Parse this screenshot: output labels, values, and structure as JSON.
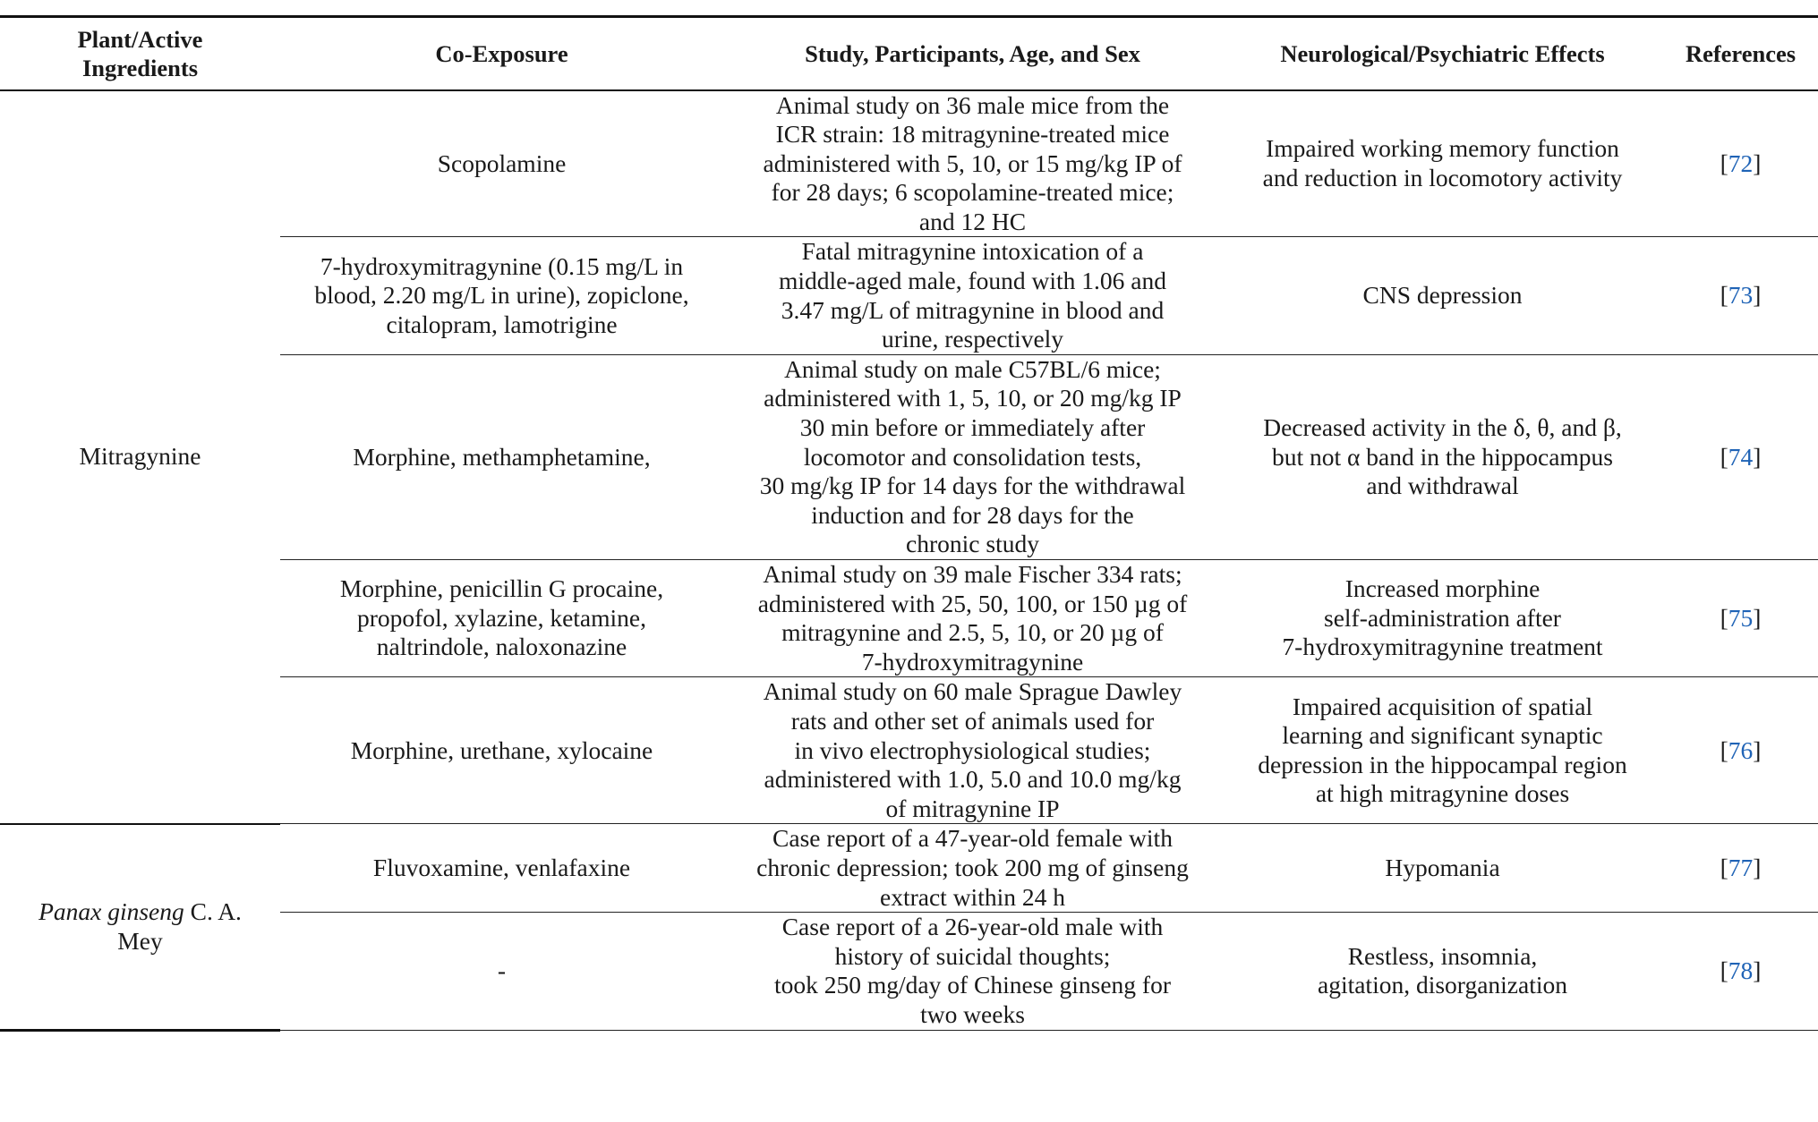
{
  "headers": {
    "plant": [
      "Plant/Active",
      "Ingredients"
    ],
    "coexposure": "Co-Exposure",
    "study": "Study, Participants, Age, and Sex",
    "effects": "Neurological/Psychiatric Effects",
    "references": "References"
  },
  "groups": [
    {
      "plant_lines": [
        "Mitragynine"
      ],
      "rows": [
        {
          "coexposure": [
            "Scopolamine"
          ],
          "study": [
            "Animal study on 36 male mice from the",
            "ICR strain: 18 mitragynine-treated mice",
            "administered with 5, 10, or 15 mg/kg IP of",
            "for 28 days; 6 scopolamine-treated mice;",
            "and 12 HC"
          ],
          "effects": [
            "Impaired working memory function",
            "and reduction in locomotory activity"
          ],
          "ref": "72"
        },
        {
          "coexposure": [
            "7-hydroxymitragynine (0.15 mg/L in",
            "blood, 2.20 mg/L in urine), zopiclone,",
            "citalopram, lamotrigine"
          ],
          "study": [
            "Fatal mitragynine intoxication of a",
            "middle-aged male, found with 1.06 and",
            "3.47 mg/L of mitragynine in blood and",
            "urine, respectively"
          ],
          "effects": [
            "CNS depression"
          ],
          "ref": "73"
        },
        {
          "coexposure": [
            "Morphine, methamphetamine,"
          ],
          "study": [
            "Animal study on male C57BL/6 mice;",
            "administered with 1, 5, 10, or 20 mg/kg IP",
            "30 min before or immediately after",
            "locomotor and consolidation tests,",
            "30 mg/kg IP for 14 days for the withdrawal",
            "induction and for 28 days for the",
            "chronic study"
          ],
          "effects": [
            "Decreased activity in the δ, θ, and β,",
            "but not α band in the hippocampus",
            "and withdrawal"
          ],
          "ref": "74"
        },
        {
          "coexposure": [
            "Morphine, penicillin G procaine,",
            "propofol, xylazine, ketamine,",
            "naltrindole, naloxonazine"
          ],
          "study": [
            "Animal study on 39 male Fischer 334 rats;",
            "administered with 25, 50, 100, or 150 µg of",
            "mitragynine and 2.5, 5, 10, or 20 µg of",
            "7-hydroxymitragynine"
          ],
          "effects": [
            "Increased morphine",
            "self-administration after",
            "7-hydroxymitragynine treatment"
          ],
          "ref": "75"
        },
        {
          "coexposure": [
            "Morphine, urethane, xylocaine"
          ],
          "study": [
            "Animal study on 60 male Sprague Dawley",
            "rats and other set of animals used for",
            "in vivo electrophysiological studies;",
            "administered with 1.0, 5.0 and 10.0 mg/kg",
            "of mitragynine IP"
          ],
          "effects": [
            "Impaired acquisition of spatial",
            "learning and significant synaptic",
            "depression in the hippocampal region",
            "at high mitragynine doses"
          ],
          "ref": "76"
        }
      ]
    },
    {
      "plant_italic": "Panax ginseng",
      "plant_rest": " C. A.",
      "plant_line2": "Mey",
      "rows": [
        {
          "coexposure": [
            "Fluvoxamine, venlafaxine"
          ],
          "study": [
            "Case report of a 47-year-old female with",
            "chronic depression; took 200 mg of ginseng",
            "extract within 24 h"
          ],
          "effects": [
            "Hypomania"
          ],
          "ref": "77"
        },
        {
          "coexposure": [
            "-"
          ],
          "study": [
            "Case report of a 26-year-old male with",
            "history of suicidal thoughts;",
            "took 250 mg/day of Chinese ginseng for",
            "two weeks"
          ],
          "effects": [
            "Restless, insomnia,",
            "agitation, disorganization"
          ],
          "ref": "78"
        }
      ]
    }
  ],
  "colors": {
    "link": "#1f63b6",
    "rule": "#111111"
  }
}
